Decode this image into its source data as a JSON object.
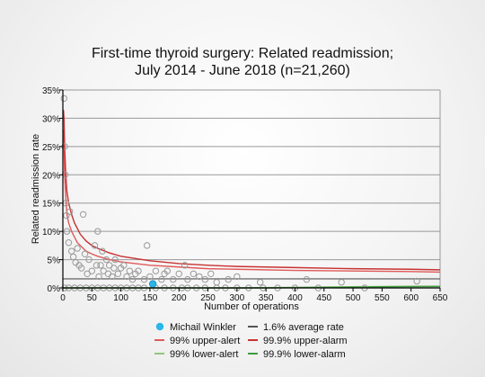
{
  "chart_data": {
    "type": "scatter",
    "title_lines": [
      "First-time thyroid surgery: Related readmission;",
      "July 2014 - June 2018 (n=21,260)"
    ],
    "xlabel": "Number of operations",
    "ylabel": "Related readmission rate",
    "xlim": [
      0,
      650
    ],
    "ylim": [
      0,
      35
    ],
    "x_ticks": [
      0,
      50,
      100,
      150,
      200,
      250,
      300,
      350,
      400,
      450,
      500,
      550,
      600,
      650
    ],
    "y_ticks": [
      0,
      5,
      10,
      15,
      20,
      25,
      30,
      35
    ],
    "y_tick_labels": [
      "0%",
      "5%",
      "10%",
      "15%",
      "20%",
      "25%",
      "30%",
      "35%"
    ],
    "grid": true,
    "average_rate": 1.6,
    "colors": {
      "highlight": "#29b6e8",
      "average": "#555555",
      "upper_alert": "#e05a5a",
      "upper_alarm": "#c83232",
      "lower_alert": "#90c878",
      "lower_alarm": "#3f9a3f",
      "points": "#999999"
    },
    "legend": [
      {
        "label": "Michail Winkler",
        "kind": "dot",
        "color": "#29b6e8"
      },
      {
        "label": "1.6% average rate",
        "kind": "line",
        "color": "#555555"
      },
      {
        "label": "99% upper-alert",
        "kind": "line",
        "color": "#e05a5a"
      },
      {
        "label": "99.9% upper-alarm",
        "kind": "line",
        "color": "#c83232"
      },
      {
        "label": "99% lower-alert",
        "kind": "line",
        "color": "#90c878"
      },
      {
        "label": "99.9% lower-alarm",
        "kind": "line",
        "color": "#3f9a3f"
      }
    ],
    "highlight_point": {
      "name": "Michail Winkler",
      "x": 155,
      "y": 0.7
    },
    "series": [
      {
        "name": "99% upper-alert",
        "x": [
          1,
          2,
          3,
          5,
          7,
          10,
          15,
          20,
          25,
          30,
          40,
          50,
          60,
          80,
          100,
          125,
          150,
          200,
          250,
          300,
          400,
          500,
          600,
          650
        ],
        "values": [
          28.0,
          25.0,
          20.0,
          16.0,
          13.0,
          11.5,
          10.0,
          9.0,
          8.0,
          7.5,
          6.5,
          6.0,
          5.6,
          5.0,
          4.6,
          4.3,
          4.0,
          3.7,
          3.4,
          3.3,
          3.1,
          3.0,
          2.9,
          2.8
        ]
      },
      {
        "name": "99.9% upper-alarm",
        "x": [
          1,
          2,
          3,
          5,
          7,
          10,
          15,
          20,
          25,
          30,
          40,
          50,
          60,
          80,
          100,
          125,
          150,
          200,
          250,
          300,
          400,
          500,
          600,
          650
        ],
        "values": [
          31.5,
          30.0,
          25.0,
          20.0,
          17.0,
          15.0,
          13.0,
          11.5,
          10.5,
          9.5,
          8.3,
          7.5,
          7.0,
          6.2,
          5.6,
          5.2,
          4.8,
          4.3,
          4.0,
          3.8,
          3.6,
          3.4,
          3.3,
          3.2
        ]
      },
      {
        "name": "99% lower-alert",
        "x": [
          0,
          300,
          400,
          500,
          600,
          650
        ],
        "values": [
          0,
          0,
          0.1,
          0.2,
          0.3,
          0.3
        ]
      },
      {
        "name": "99.9% lower-alarm",
        "x": [
          0,
          350,
          450,
          550,
          650
        ],
        "values": [
          0,
          0,
          0.1,
          0.2,
          0.25
        ]
      }
    ],
    "points": [
      {
        "x": 2,
        "y": 33.5
      },
      {
        "x": 3,
        "y": 25
      },
      {
        "x": 4,
        "y": 20
      },
      {
        "x": 5,
        "y": 15
      },
      {
        "x": 6,
        "y": 12.8
      },
      {
        "x": 7,
        "y": 10
      },
      {
        "x": 10,
        "y": 8
      },
      {
        "x": 12,
        "y": 13.5
      },
      {
        "x": 15,
        "y": 6.5
      },
      {
        "x": 18,
        "y": 5.5
      },
      {
        "x": 22,
        "y": 4.5
      },
      {
        "x": 25,
        "y": 7
      },
      {
        "x": 28,
        "y": 4
      },
      {
        "x": 32,
        "y": 3.5
      },
      {
        "x": 35,
        "y": 13
      },
      {
        "x": 38,
        "y": 6
      },
      {
        "x": 42,
        "y": 2.5
      },
      {
        "x": 45,
        "y": 5
      },
      {
        "x": 50,
        "y": 3
      },
      {
        "x": 55,
        "y": 7.5
      },
      {
        "x": 58,
        "y": 4
      },
      {
        "x": 60,
        "y": 10
      },
      {
        "x": 62,
        "y": 2
      },
      {
        "x": 65,
        "y": 4
      },
      {
        "x": 68,
        "y": 6.5
      },
      {
        "x": 70,
        "y": 3
      },
      {
        "x": 75,
        "y": 5
      },
      {
        "x": 78,
        "y": 2.5
      },
      {
        "x": 80,
        "y": 4
      },
      {
        "x": 85,
        "y": 2
      },
      {
        "x": 88,
        "y": 3.5
      },
      {
        "x": 90,
        "y": 5
      },
      {
        "x": 95,
        "y": 2.5
      },
      {
        "x": 100,
        "y": 3.5
      },
      {
        "x": 105,
        "y": 4
      },
      {
        "x": 110,
        "y": 2
      },
      {
        "x": 115,
        "y": 3
      },
      {
        "x": 120,
        "y": 1.5
      },
      {
        "x": 125,
        "y": 2.5
      },
      {
        "x": 130,
        "y": 3
      },
      {
        "x": 140,
        "y": 1.5
      },
      {
        "x": 145,
        "y": 7.5
      },
      {
        "x": 150,
        "y": 2
      },
      {
        "x": 160,
        "y": 3
      },
      {
        "x": 170,
        "y": 1.5
      },
      {
        "x": 175,
        "y": 2.5
      },
      {
        "x": 180,
        "y": 3
      },
      {
        "x": 190,
        "y": 1.5
      },
      {
        "x": 200,
        "y": 2.5
      },
      {
        "x": 210,
        "y": 4
      },
      {
        "x": 215,
        "y": 1.5
      },
      {
        "x": 225,
        "y": 2.5
      },
      {
        "x": 235,
        "y": 2
      },
      {
        "x": 245,
        "y": 1.5
      },
      {
        "x": 255,
        "y": 2.5
      },
      {
        "x": 265,
        "y": 1
      },
      {
        "x": 285,
        "y": 1.5
      },
      {
        "x": 300,
        "y": 2
      },
      {
        "x": 340,
        "y": 1
      },
      {
        "x": 420,
        "y": 1.5
      },
      {
        "x": 480,
        "y": 1
      },
      {
        "x": 610,
        "y": 1.2
      },
      {
        "x": 3,
        "y": 0
      },
      {
        "x": 10,
        "y": 0
      },
      {
        "x": 20,
        "y": 0
      },
      {
        "x": 30,
        "y": 0
      },
      {
        "x": 40,
        "y": 0
      },
      {
        "x": 50,
        "y": 0
      },
      {
        "x": 60,
        "y": 0
      },
      {
        "x": 70,
        "y": 0
      },
      {
        "x": 80,
        "y": 0
      },
      {
        "x": 90,
        "y": 0
      },
      {
        "x": 100,
        "y": 0
      },
      {
        "x": 110,
        "y": 0
      },
      {
        "x": 120,
        "y": 0
      },
      {
        "x": 130,
        "y": 0
      },
      {
        "x": 140,
        "y": 0
      },
      {
        "x": 160,
        "y": 0
      },
      {
        "x": 175,
        "y": 0
      },
      {
        "x": 190,
        "y": 0
      },
      {
        "x": 205,
        "y": 0
      },
      {
        "x": 215,
        "y": 0
      },
      {
        "x": 230,
        "y": 0
      },
      {
        "x": 245,
        "y": 0
      },
      {
        "x": 265,
        "y": 0
      },
      {
        "x": 280,
        "y": 0
      },
      {
        "x": 300,
        "y": 0
      },
      {
        "x": 320,
        "y": 0
      },
      {
        "x": 345,
        "y": 0
      },
      {
        "x": 370,
        "y": 0
      },
      {
        "x": 400,
        "y": 0
      },
      {
        "x": 440,
        "y": 0
      },
      {
        "x": 520,
        "y": 0
      }
    ]
  }
}
